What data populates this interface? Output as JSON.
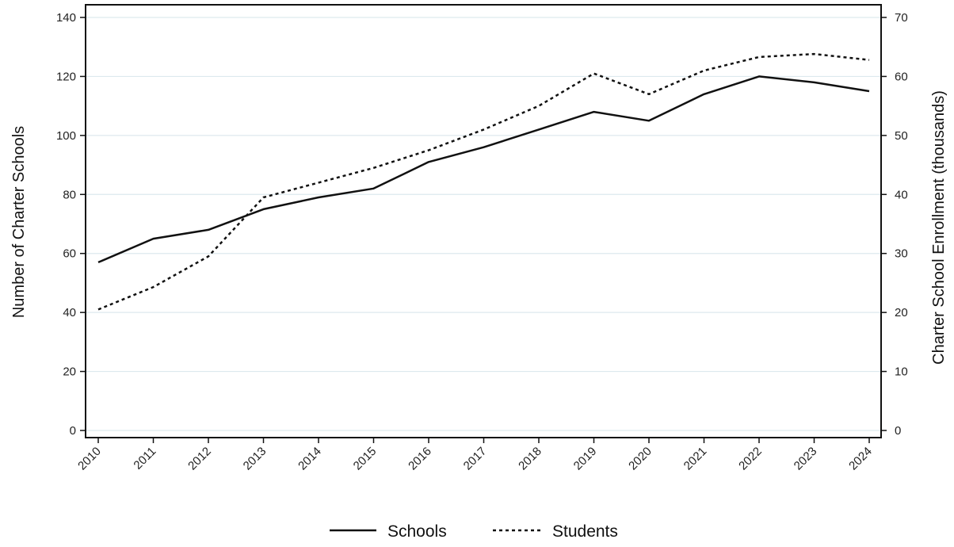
{
  "chart_data": {
    "type": "line",
    "title": "",
    "x": [
      "2010",
      "2011",
      "2012",
      "2013",
      "2014",
      "2015",
      "2016",
      "2017",
      "2018",
      "2019",
      "2020",
      "2021",
      "2022",
      "2023",
      "2024"
    ],
    "xlabel": "",
    "ylabel_left": "Number of Charter Schools",
    "ylabel_right": "Charter School Enrollment (thousands)",
    "ylim_left": [
      0,
      140
    ],
    "ylim_right": [
      0,
      70
    ],
    "yticks_left": [
      "0",
      "20",
      "40",
      "60",
      "80",
      "100",
      "120",
      "140"
    ],
    "yticks_right": [
      "0",
      "10",
      "20",
      "30",
      "40",
      "50",
      "60",
      "70"
    ],
    "grid": true,
    "legend_position": "bottom",
    "series": [
      {
        "name": "Schools",
        "axis": "left",
        "style": "solid",
        "color": "#111111",
        "values": [
          57,
          65,
          68,
          75,
          79,
          82,
          91,
          96,
          102,
          108,
          105,
          114,
          120,
          118,
          115
        ]
      },
      {
        "name": "Students",
        "axis": "right",
        "style": "dotted",
        "color": "#111111",
        "values": [
          20.5,
          24.3,
          29.5,
          39.5,
          42,
          44.5,
          47.5,
          51,
          55,
          60.5,
          57,
          61,
          63.3,
          63.8,
          62.8
        ]
      }
    ]
  }
}
